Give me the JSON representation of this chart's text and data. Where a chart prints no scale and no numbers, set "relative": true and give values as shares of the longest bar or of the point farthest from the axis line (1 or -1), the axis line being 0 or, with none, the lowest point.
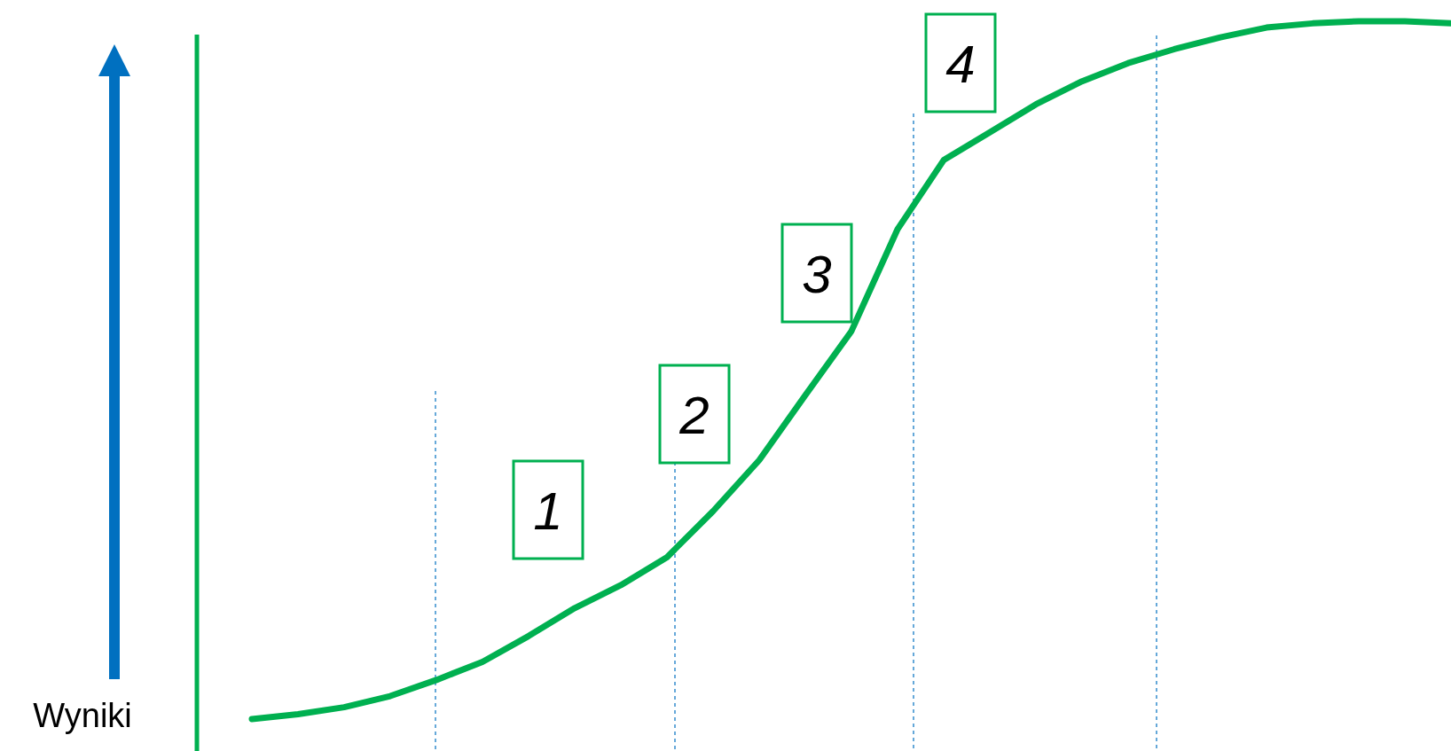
{
  "chart_data": {
    "type": "line",
    "relative": true,
    "ylabel": "Wyniki",
    "color": "#00b050",
    "line_style": "solid",
    "marker": "none",
    "legend": false,
    "categories": [
      null,
      null,
      null,
      null,
      null,
      null,
      null,
      null,
      null,
      null,
      null,
      null,
      null,
      null,
      null,
      null,
      null,
      null,
      null,
      null,
      null,
      null,
      null,
      null,
      null,
      null,
      null
    ],
    "values": [
      0,
      0.007,
      0.017,
      0.033,
      0.056,
      0.082,
      0.119,
      0.159,
      0.192,
      0.232,
      0.298,
      0.371,
      0.464,
      0.556,
      0.702,
      0.801,
      0.841,
      0.881,
      0.914,
      0.94,
      0.96,
      0.977,
      0.991,
      0.997,
      1,
      1,
      0.997
    ],
    "annotations": [
      "1",
      "2",
      "3",
      "4"
    ]
  }
}
